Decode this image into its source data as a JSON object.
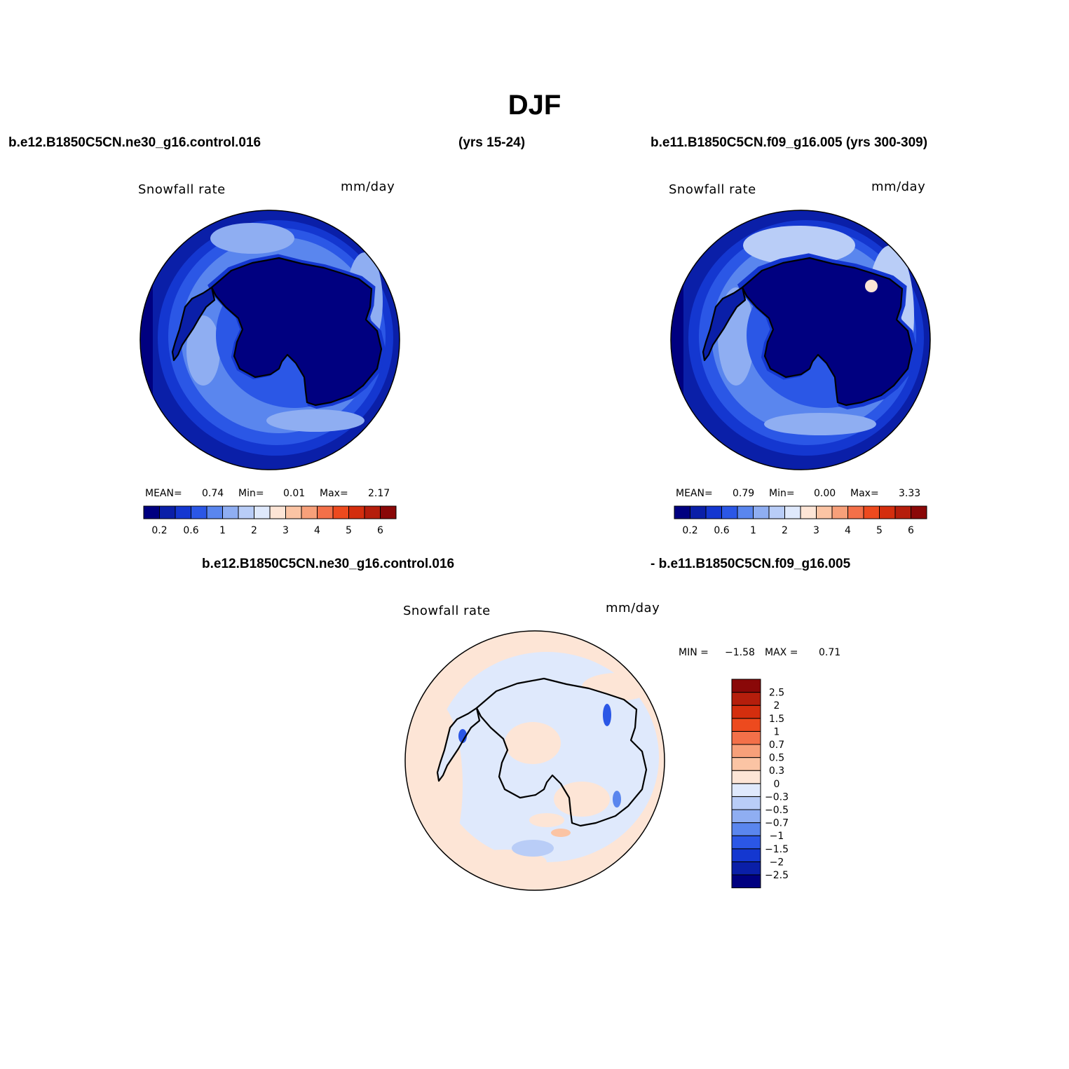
{
  "title": "DJF",
  "header": {
    "case1": "b.e12.B1850C5CN.ne30_g16.control.016",
    "case1_years": "(yrs 15-24)",
    "case2": "b.e11.B1850C5CN.f09_g16.005 (yrs 300-309)",
    "diff_line1": "b.e12.B1850C5CN.ne30_g16.control.016",
    "diff_line2": "- b.e11.B1850C5CN.f09_g16.005"
  },
  "panels": [
    {
      "variable": "Snowfall rate",
      "units": "mm/day",
      "stats": {
        "mean_label": "MEAN=",
        "mean": "0.74",
        "min_label": "Min=",
        "min": "0.01",
        "max_label": "Max=",
        "max": "2.17"
      }
    },
    {
      "variable": "Snowfall rate",
      "units": "mm/day",
      "stats": {
        "mean_label": "MEAN=",
        "mean": "0.79",
        "min_label": "Min=",
        "min": "0.00",
        "max_label": "Max=",
        "max": "3.33"
      }
    },
    {
      "variable": "Snowfall rate",
      "units": "mm/day",
      "stats": {
        "min_label": "MIN =",
        "min": "−1.58",
        "max_label": "MAX =",
        "max": "0.71"
      }
    }
  ],
  "colorbar_abs": {
    "colors": [
      "#000080",
      "#0a1fa8",
      "#1437d0",
      "#2b57e6",
      "#5a86ee",
      "#8faef2",
      "#b9cdf7",
      "#dfe9fc",
      "#fde5d6",
      "#fbc4a4",
      "#f7a07a",
      "#f37049",
      "#ed4a1e",
      "#d42e0e",
      "#b51e0c",
      "#8a0808"
    ],
    "tick_labels": [
      "0.2",
      "0.6",
      "1",
      "2",
      "3",
      "4",
      "5",
      "6"
    ]
  },
  "colorbar_diff": {
    "colors": [
      "#000080",
      "#0a1fa8",
      "#1437d0",
      "#2b57e6",
      "#5a86ee",
      "#8faef2",
      "#b9cdf7",
      "#dfe9fc",
      "#fde5d6",
      "#fbc4a4",
      "#f7a07a",
      "#f37049",
      "#ed4a1e",
      "#d42e0e",
      "#b51e0c",
      "#8a0808"
    ],
    "tick_labels": [
      "−2.5",
      "−2",
      "−1.5",
      "−1",
      "−0.7",
      "−0.5",
      "−0.3",
      "0",
      "0.3",
      "0.5",
      "0.7",
      "1",
      "1.5",
      "2",
      "2.5"
    ]
  }
}
